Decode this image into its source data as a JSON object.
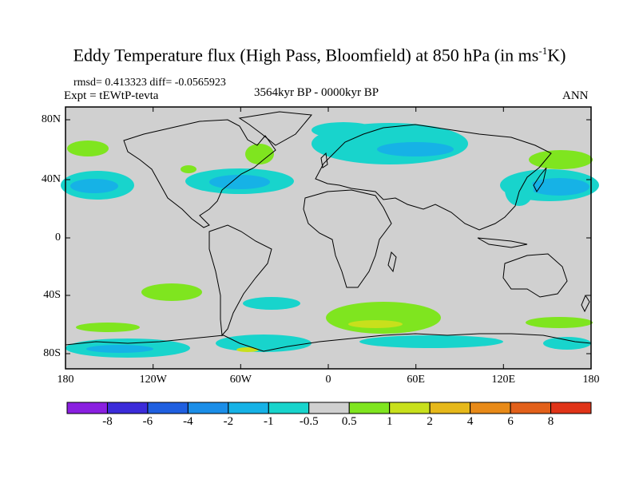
{
  "title": {
    "text": "Eddy Temperature flux (High Pass, Bloomfield) at 850 hPa (in ms",
    "exponent": "-1",
    "suffix": "K)"
  },
  "stats_line": "rmsd= 0.413323  diff= -0.0565923",
  "expt_line": "Expt = tEWtP-tevta",
  "period_line": "3564kyr BP - 0000kyr BP",
  "season": "ANN",
  "y_ticks": [
    "80N",
    "40N",
    "0",
    "40S",
    "80S"
  ],
  "x_ticks": [
    "180",
    "120W",
    "60W",
    "0",
    "60E",
    "120E",
    "180"
  ],
  "colorbar": {
    "labels": [
      "-8",
      "-6",
      "-4",
      "-2",
      "-1",
      "-0.5",
      "0.5",
      "1",
      "2",
      "4",
      "6",
      "8"
    ],
    "colors": [
      "#8a1fe0",
      "#3b2bd9",
      "#1f5fe0",
      "#1b8ee8",
      "#16b2e6",
      "#18d4cc",
      "#d0d0d0",
      "#7fe51f",
      "#c8e01c",
      "#e6b81a",
      "#e88a18",
      "#e2601a",
      "#e03418"
    ]
  },
  "map_colors": {
    "ocean_land": "#d0d0d0",
    "coast": "#000000"
  }
}
